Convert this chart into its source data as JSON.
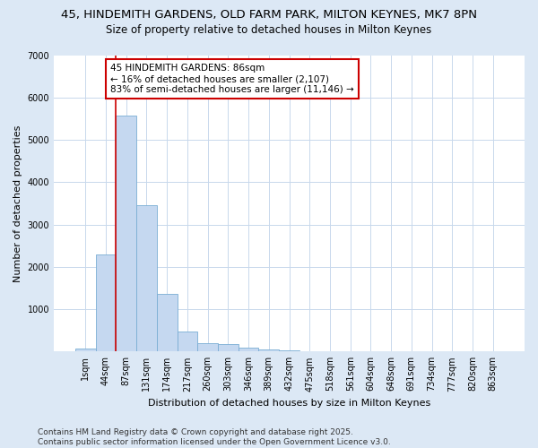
{
  "title_line1": "45, HINDEMITH GARDENS, OLD FARM PARK, MILTON KEYNES, MK7 8PN",
  "title_line2": "Size of property relative to detached houses in Milton Keynes",
  "xlabel": "Distribution of detached houses by size in Milton Keynes",
  "ylabel": "Number of detached properties",
  "categories": [
    "1sqm",
    "44sqm",
    "87sqm",
    "131sqm",
    "174sqm",
    "217sqm",
    "260sqm",
    "303sqm",
    "346sqm",
    "389sqm",
    "432sqm",
    "475sqm",
    "518sqm",
    "561sqm",
    "604sqm",
    "648sqm",
    "691sqm",
    "734sqm",
    "777sqm",
    "820sqm",
    "863sqm"
  ],
  "values": [
    70,
    2300,
    5580,
    3450,
    1360,
    470,
    200,
    170,
    90,
    55,
    25,
    0,
    0,
    0,
    0,
    0,
    0,
    0,
    0,
    0,
    0
  ],
  "bar_color": "#c5d8f0",
  "bar_edge_color": "#7aadd4",
  "vline_color": "#cc0000",
  "annotation_text": "45 HINDEMITH GARDENS: 86sqm\n← 16% of detached houses are smaller (2,107)\n83% of semi-detached houses are larger (11,146) →",
  "annotation_box_edgecolor": "#cc0000",
  "ylim": [
    0,
    7000
  ],
  "yticks": [
    0,
    1000,
    2000,
    3000,
    4000,
    5000,
    6000,
    7000
  ],
  "plot_bg_color": "#ffffff",
  "fig_bg_color": "#dce8f5",
  "footer_text": "Contains HM Land Registry data © Crown copyright and database right 2025.\nContains public sector information licensed under the Open Government Licence v3.0.",
  "title_fontsize": 9.5,
  "subtitle_fontsize": 8.5,
  "axis_label_fontsize": 8,
  "tick_fontsize": 7,
  "annotation_fontsize": 7.5,
  "footer_fontsize": 6.5,
  "vline_bar_index": 2
}
